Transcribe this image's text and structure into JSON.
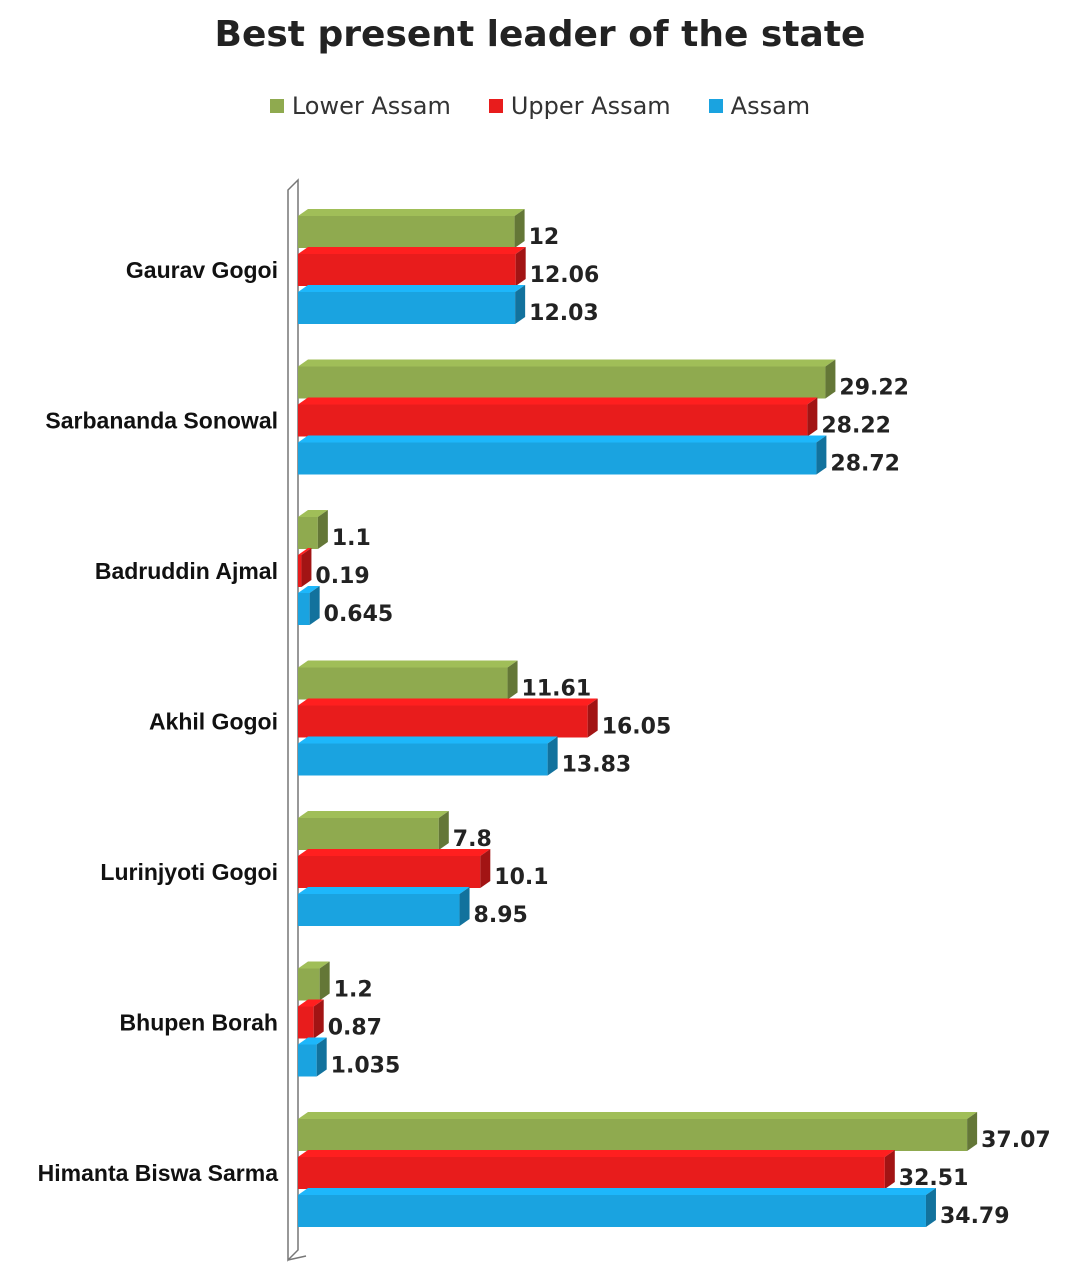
{
  "chart_data": {
    "type": "bar",
    "orientation": "horizontal",
    "title": "Best present leader of the state",
    "categories": [
      "Gaurav Gogoi",
      "Sarbananda Sonowal",
      "Badruddin Ajmal",
      "Akhil Gogoi",
      "Lurinjyoti Gogoi",
      "Bhupen Borah",
      "Himanta Biswa Sarma"
    ],
    "series": [
      {
        "name": "Lower Assam",
        "color": "#8faa4f",
        "values": [
          12,
          29.22,
          1.1,
          11.61,
          7.8,
          1.2,
          37.07
        ],
        "labels": [
          "12",
          "29.22",
          "1.1",
          "11.61",
          "7.8",
          "1.2",
          "37.07"
        ]
      },
      {
        "name": "Upper Assam",
        "color": "#e81c1c",
        "values": [
          12.06,
          28.22,
          0.19,
          16.05,
          10.1,
          0.87,
          32.51
        ],
        "labels": [
          "12.06",
          "28.22",
          "0.19",
          "16.05",
          "10.1",
          "0.87",
          "32.51"
        ]
      },
      {
        "name": "Assam",
        "color": "#1aa3e0",
        "values": [
          12.03,
          28.72,
          0.645,
          13.83,
          8.95,
          1.035,
          34.79
        ],
        "labels": [
          "12.03",
          "28.72",
          "0.645",
          "13.83",
          "8.95",
          "1.035",
          "34.79"
        ]
      }
    ],
    "xlim": [
      0,
      40
    ],
    "legend_position": "top",
    "grid": false
  }
}
